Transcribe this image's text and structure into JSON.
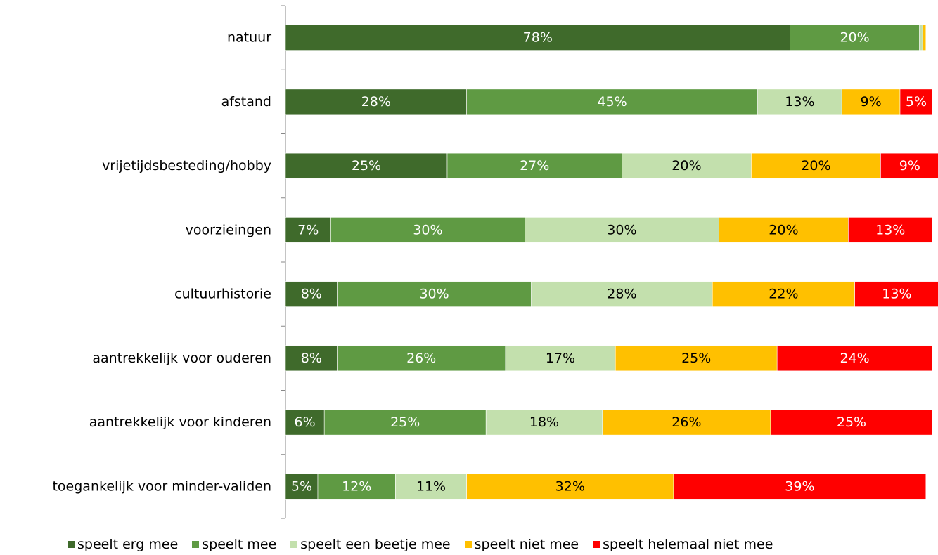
{
  "chart_data": {
    "type": "bar",
    "orientation": "horizontal",
    "stacked": true,
    "percent_stacked": true,
    "categories": [
      "natuur",
      "afstand",
      "vrijetijdsbesteding/hobby",
      "voorzieingen",
      "cultuurhistorie",
      "aantrekkelijk voor ouderen",
      "aantrekkelijk voor kinderen",
      "toegankelijk voor minder-validen"
    ],
    "series": [
      {
        "name": "speelt erg mee",
        "color": "#3f6a2b",
        "values": [
          78,
          28,
          25,
          7,
          8,
          8,
          6,
          5
        ],
        "labels": [
          "78%",
          "28%",
          "25%",
          "7%",
          "8%",
          "8%",
          "6%",
          "5%"
        ]
      },
      {
        "name": "speelt mee",
        "color": "#5f9a43",
        "values": [
          20,
          45,
          27,
          30,
          30,
          26,
          25,
          12
        ],
        "labels": [
          "20%",
          "45%",
          "27%",
          "30%",
          "30%",
          "26%",
          "25%",
          "12%"
        ]
      },
      {
        "name": "speelt een beetje mee",
        "color": "#c3e0ad",
        "values": [
          0.5,
          13,
          20,
          30,
          28,
          17,
          18,
          11
        ],
        "labels": [
          "",
          "13%",
          "20%",
          "30%",
          "28%",
          "17%",
          "18%",
          "11%"
        ]
      },
      {
        "name": "speelt niet mee",
        "color": "#ffc000",
        "values": [
          0.5,
          9,
          20,
          20,
          22,
          25,
          26,
          32
        ],
        "labels": [
          "",
          "9%",
          "20%",
          "20%",
          "22%",
          "25%",
          "26%",
          "32%"
        ]
      },
      {
        "name": "speelt helemaal niet mee",
        "color": "#ff0000",
        "values": [
          0,
          5,
          9,
          13,
          13,
          24,
          25,
          39
        ],
        "labels": [
          "",
          "5%",
          "9%",
          "13%",
          "13%",
          "24%",
          "25%",
          "39%"
        ]
      }
    ],
    "label_colors": [
      "#ffffff",
      "#ffffff",
      "#000000",
      "#000000",
      "#ffffff"
    ],
    "xlim": [
      0,
      100
    ],
    "legend_position": "bottom",
    "grid": false
  }
}
